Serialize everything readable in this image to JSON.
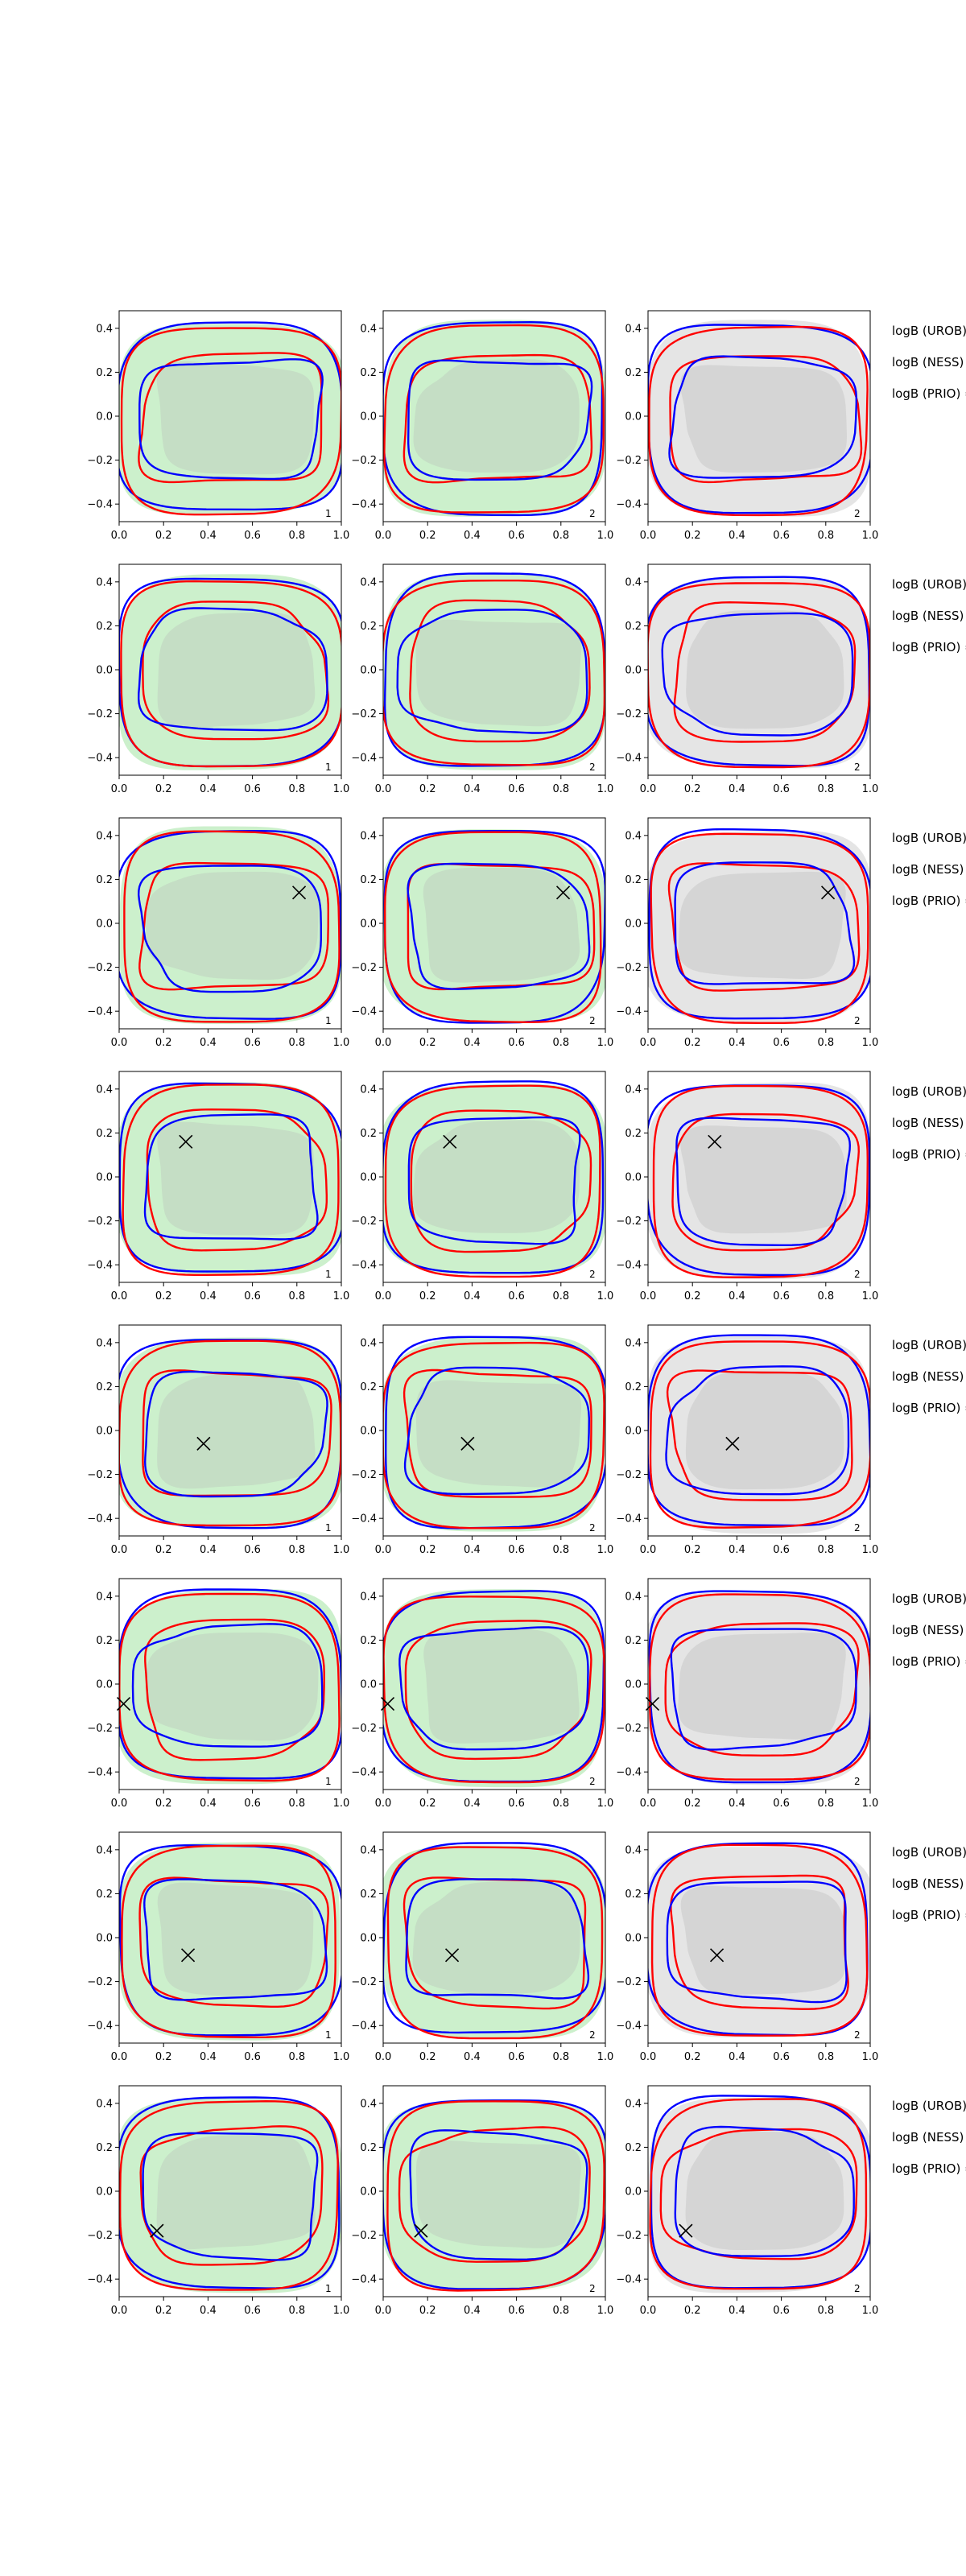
{
  "chart_data": {
    "type": "contour-grid",
    "rows": 8,
    "columns": 3,
    "x_ticks": [
      "0.0",
      "0.2",
      "0.4",
      "0.6",
      "0.8",
      "1.0"
    ],
    "y_ticks": [
      "0.4",
      "0.2",
      "0.0",
      "−0.2",
      "−0.4"
    ],
    "xlim": [
      0,
      1
    ],
    "ylim": [
      -0.48,
      0.48
    ],
    "panel_tags": [
      "1",
      "2",
      "2"
    ],
    "side_labels": [
      "logB (UROB) =",
      "logB (NESS) =",
      "logB (PRIO) ="
    ],
    "series_colors": {
      "blue": "#0000ff",
      "red": "#ff0000"
    },
    "fill_colors": {
      "green_outer": "#ccf0cc",
      "green_inner": "#c4dcc4",
      "gray_outer": "#e5e5e5",
      "gray_inner": "#d4d4d4"
    },
    "markers": [
      null,
      null,
      [
        0.81,
        0.14
      ],
      [
        0.3,
        0.16
      ],
      [
        0.38,
        -0.06
      ],
      [
        0.02,
        -0.09
      ],
      [
        0.31,
        -0.08
      ],
      [
        0.17,
        -0.18
      ]
    ]
  }
}
